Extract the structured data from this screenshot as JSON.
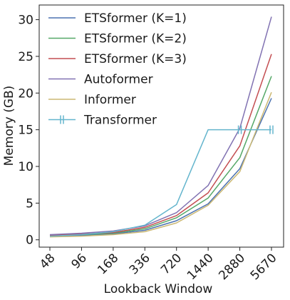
{
  "chart_data": {
    "type": "line",
    "title": "",
    "xlabel": "Lookback Window",
    "ylabel": "Memory (GB)",
    "categories": [
      "48",
      "96",
      "168",
      "336",
      "720",
      "1440",
      "2880",
      "5670"
    ],
    "yticks": [
      0,
      5,
      10,
      15,
      20,
      25,
      30
    ],
    "ylim": [
      -1,
      32
    ],
    "grid": false,
    "legend_position": "top-left",
    "series": [
      {
        "name": "ETSformer (K=1)",
        "color": "#4c72b0",
        "values": [
          0.5,
          0.6,
          0.8,
          1.3,
          2.6,
          4.9,
          9.7,
          19.3
        ]
      },
      {
        "name": "ETSformer (K=2)",
        "color": "#55a868",
        "values": [
          0.6,
          0.7,
          0.9,
          1.5,
          3.0,
          5.7,
          11.2,
          22.3
        ]
      },
      {
        "name": "ETSformer (K=3)",
        "color": "#c44e52",
        "values": [
          0.6,
          0.8,
          1.0,
          1.7,
          3.3,
          6.4,
          12.8,
          25.3
        ]
      },
      {
        "name": "Autoformer",
        "color": "#8172b2",
        "values": [
          0.7,
          0.9,
          1.2,
          1.9,
          3.7,
          7.4,
          15.2,
          30.4
        ]
      },
      {
        "name": "Informer",
        "color": "#ccb974",
        "values": [
          0.4,
          0.5,
          0.7,
          1.1,
          2.3,
          4.7,
          9.3,
          20.1
        ]
      },
      {
        "name": "Transformer",
        "color": "#64b5cd",
        "values": [
          0.5,
          0.7,
          1.1,
          2.0,
          4.8,
          15.0,
          15.0,
          15.0
        ],
        "oom_markers_at": [
          "2880",
          "5670"
        ]
      }
    ]
  }
}
